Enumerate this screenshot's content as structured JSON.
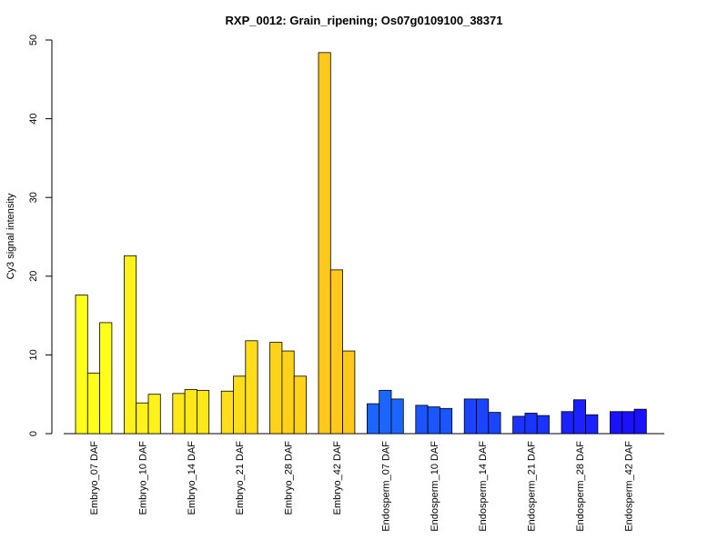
{
  "chart_data": {
    "type": "bar",
    "title": "RXP_0012: Grain_ripening; Os07g0109100_38371",
    "ylabel": "Cy3 signal intensity",
    "xlabel": "",
    "ylim": [
      0,
      50
    ],
    "yticks": [
      0,
      10,
      20,
      30,
      40,
      50
    ],
    "grid": false,
    "legend": "none",
    "groups": [
      {
        "label": "Embryo_07 DAF",
        "color": "#FFFF1A",
        "values": [
          17.6,
          7.7,
          14.1
        ]
      },
      {
        "label": "Embryo_10 DAF",
        "color": "#FFF21A",
        "values": [
          22.6,
          3.9,
          5.0
        ]
      },
      {
        "label": "Embryo_14 DAF",
        "color": "#FFE81A",
        "values": [
          5.1,
          5.6,
          5.5
        ]
      },
      {
        "label": "Embryo_21 DAF",
        "color": "#FFDD1A",
        "values": [
          5.4,
          7.3,
          11.8
        ]
      },
      {
        "label": "Embryo_28 DAF",
        "color": "#FFD21A",
        "values": [
          11.6,
          10.5,
          7.3
        ]
      },
      {
        "label": "Embryo_42 DAF",
        "color": "#FFC81A",
        "values": [
          48.4,
          20.8,
          10.5
        ]
      },
      {
        "label": "Endosperm_07 DAF",
        "color": "#1A66FF",
        "values": [
          3.8,
          5.5,
          4.4
        ]
      },
      {
        "label": "Endosperm_10 DAF",
        "color": "#1A55FF",
        "values": [
          3.6,
          3.4,
          3.2
        ]
      },
      {
        "label": "Endosperm_14 DAF",
        "color": "#1A44FF",
        "values": [
          4.4,
          4.4,
          2.7
        ]
      },
      {
        "label": "Endosperm_21 DAF",
        "color": "#1A33FF",
        "values": [
          2.2,
          2.6,
          2.3
        ]
      },
      {
        "label": "Endosperm_28 DAF",
        "color": "#1A22FF",
        "values": [
          2.8,
          4.3,
          2.4
        ]
      },
      {
        "label": "Endosperm_42 DAF",
        "color": "#1A11FF",
        "values": [
          2.8,
          2.8,
          3.1
        ]
      }
    ]
  }
}
